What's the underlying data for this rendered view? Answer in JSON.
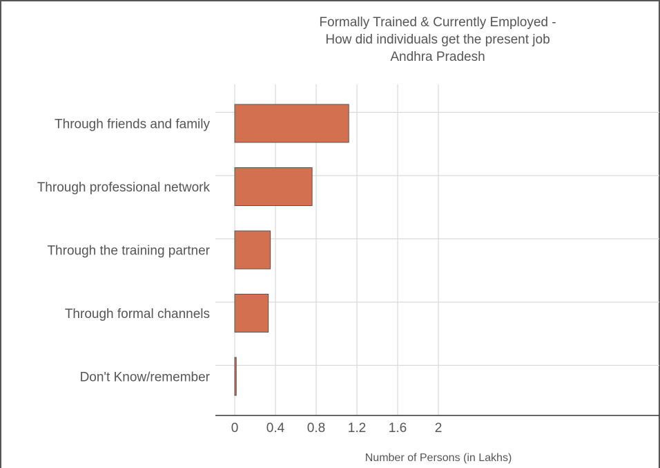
{
  "chart_data": {
    "type": "bar",
    "orientation": "horizontal",
    "title": "Formally Trained & Currently Employed -",
    "subtitle": "How did individuals get the present job",
    "region": "Andhra Pradesh",
    "xlabel": "Number of Persons (in Lakhs)",
    "ylabel": "",
    "categories": [
      "Through friends and family",
      "Through professional network",
      "Through the training partner",
      "Through formal channels",
      "Don't Know/remember"
    ],
    "values": [
      1.12,
      0.76,
      0.35,
      0.33,
      0.015
    ],
    "xlim": [
      0,
      2.05
    ],
    "xticks": [
      0,
      0.4,
      0.8,
      1.2,
      1.6,
      2
    ],
    "xtick_labels": [
      "0",
      "0.4",
      "0.8",
      "1.2",
      "1.6",
      "2"
    ],
    "bar_color": "#d2704f",
    "bar_edge_color": "#555555",
    "grid": true,
    "legend": "none"
  }
}
